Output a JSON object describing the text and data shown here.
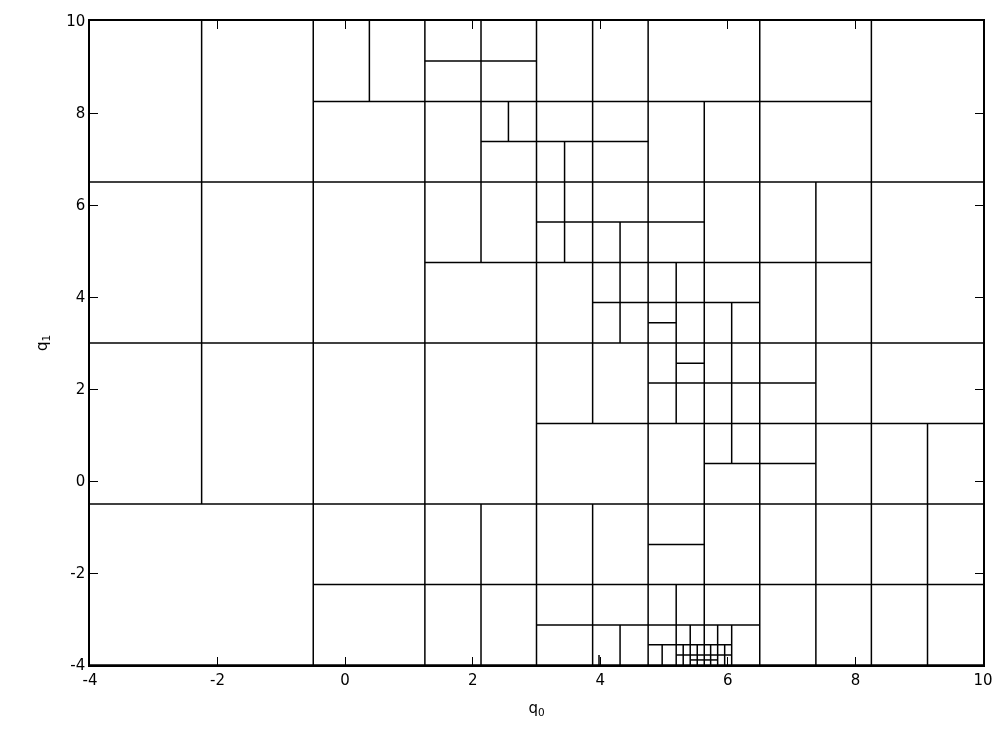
{
  "chart_data": {
    "type": "line",
    "xlabel": "q$_{0}$",
    "ylabel": "q$_{1}$",
    "xlim": [
      -4,
      10
    ],
    "ylim": [
      -4,
      10
    ],
    "xticks": [
      -4,
      -2,
      0,
      2,
      4,
      6,
      8,
      10
    ],
    "yticks": [
      -4,
      -2,
      0,
      2,
      4,
      6,
      8,
      10
    ],
    "marker": "none",
    "line_style": "solid",
    "series": [
      {
        "color": "#000000",
        "x": [
          -2.25,
          -2.25
        ],
        "values": [
          -0.5,
          10
        ]
      },
      {
        "color": "#000000",
        "x": [
          -0.5,
          -0.5
        ],
        "values": [
          -4,
          10
        ]
      },
      {
        "color": "#000000",
        "x": [
          0.38,
          0.38
        ],
        "values": [
          8.25,
          10
        ]
      },
      {
        "color": "#000000",
        "x": [
          1.25,
          1.25
        ],
        "values": [
          -4,
          10
        ]
      },
      {
        "color": "#000000",
        "x": [
          2.13,
          2.13
        ],
        "values": [
          4.75,
          10
        ]
      },
      {
        "color": "#000000",
        "x": [
          2.13,
          2.13
        ],
        "values": [
          -4,
          -0.5
        ]
      },
      {
        "color": "#000000",
        "x": [
          2.56,
          2.56
        ],
        "values": [
          7.38,
          8.25
        ]
      },
      {
        "color": "#000000",
        "x": [
          3,
          3
        ],
        "values": [
          -4,
          10
        ]
      },
      {
        "color": "#000000",
        "x": [
          3.44,
          3.44
        ],
        "values": [
          4.75,
          7.38
        ]
      },
      {
        "color": "#000000",
        "x": [
          3.88,
          3.88
        ],
        "values": [
          1.25,
          10
        ]
      },
      {
        "color": "#000000",
        "x": [
          3.88,
          3.88
        ],
        "values": [
          -4,
          -0.5
        ]
      },
      {
        "color": "#000000",
        "x": [
          3.98,
          3.98
        ],
        "values": [
          -4,
          -3.78
        ]
      },
      {
        "color": "#000000",
        "x": [
          4.31,
          4.31
        ],
        "values": [
          3,
          5.63
        ]
      },
      {
        "color": "#000000",
        "x": [
          4.31,
          4.31
        ],
        "values": [
          -4,
          -3.13
        ]
      },
      {
        "color": "#000000",
        "x": [
          4.75,
          4.75
        ],
        "values": [
          -4,
          10
        ]
      },
      {
        "color": "#000000",
        "x": [
          4.97,
          4.97
        ],
        "values": [
          -4,
          -3.56
        ]
      },
      {
        "color": "#000000",
        "x": [
          5.19,
          5.19
        ],
        "values": [
          1.25,
          4.75
        ]
      },
      {
        "color": "#000000",
        "x": [
          5.19,
          5.19
        ],
        "values": [
          -4,
          -2.25
        ]
      },
      {
        "color": "#000000",
        "x": [
          5.3,
          5.3
        ],
        "values": [
          -4,
          -3.56
        ]
      },
      {
        "color": "#000000",
        "x": [
          5.41,
          5.41
        ],
        "values": [
          -4,
          -3.13
        ]
      },
      {
        "color": "#000000",
        "x": [
          5.52,
          5.52
        ],
        "values": [
          -4,
          -3.56
        ]
      },
      {
        "color": "#000000",
        "x": [
          5.63,
          5.63
        ],
        "values": [
          -4,
          8.25
        ]
      },
      {
        "color": "#000000",
        "x": [
          5.73,
          5.73
        ],
        "values": [
          -4,
          -3.56
        ]
      },
      {
        "color": "#000000",
        "x": [
          5.84,
          5.84
        ],
        "values": [
          -4,
          -3.13
        ]
      },
      {
        "color": "#000000",
        "x": [
          5.95,
          5.95
        ],
        "values": [
          -4,
          -3.56
        ]
      },
      {
        "color": "#000000",
        "x": [
          6.06,
          6.06
        ],
        "values": [
          0.38,
          3.88
        ]
      },
      {
        "color": "#000000",
        "x": [
          6.06,
          6.06
        ],
        "values": [
          -4,
          -3.13
        ]
      },
      {
        "color": "#000000",
        "x": [
          6.5,
          6.5
        ],
        "values": [
          -4,
          10
        ]
      },
      {
        "color": "#000000",
        "x": [
          7.38,
          7.38
        ],
        "values": [
          -4,
          6.5
        ]
      },
      {
        "color": "#000000",
        "x": [
          8.25,
          8.25
        ],
        "values": [
          -4,
          10
        ]
      },
      {
        "color": "#000000",
        "x": [
          9.13,
          9.13
        ],
        "values": [
          -4,
          1.25
        ]
      },
      {
        "color": "#000000",
        "x": [
          1.25,
          3
        ],
        "values": [
          9.13,
          9.13
        ]
      },
      {
        "color": "#000000",
        "x": [
          -0.5,
          8.25
        ],
        "values": [
          8.25,
          8.25
        ]
      },
      {
        "color": "#000000",
        "x": [
          2.13,
          4.75
        ],
        "values": [
          7.38,
          7.38
        ]
      },
      {
        "color": "#000000",
        "x": [
          -4,
          10
        ],
        "values": [
          6.5,
          6.5
        ]
      },
      {
        "color": "#000000",
        "x": [
          3,
          5.63
        ],
        "values": [
          5.63,
          5.63
        ]
      },
      {
        "color": "#000000",
        "x": [
          1.25,
          8.25
        ],
        "values": [
          4.75,
          4.75
        ]
      },
      {
        "color": "#000000",
        "x": [
          3.88,
          6.5
        ],
        "values": [
          3.88,
          3.88
        ]
      },
      {
        "color": "#000000",
        "x": [
          4.75,
          5.19
        ],
        "values": [
          3.44,
          3.44
        ]
      },
      {
        "color": "#000000",
        "x": [
          -4,
          10
        ],
        "values": [
          3,
          3
        ]
      },
      {
        "color": "#000000",
        "x": [
          5.19,
          5.63
        ],
        "values": [
          2.56,
          2.56
        ]
      },
      {
        "color": "#000000",
        "x": [
          4.75,
          7.38
        ],
        "values": [
          2.13,
          2.13
        ]
      },
      {
        "color": "#000000",
        "x": [
          3,
          10
        ],
        "values": [
          1.25,
          1.25
        ]
      },
      {
        "color": "#000000",
        "x": [
          5.63,
          7.38
        ],
        "values": [
          0.38,
          0.38
        ]
      },
      {
        "color": "#000000",
        "x": [
          -4,
          10
        ],
        "values": [
          -0.5,
          -0.5
        ]
      },
      {
        "color": "#000000",
        "x": [
          4.75,
          5.63
        ],
        "values": [
          -1.38,
          -1.38
        ]
      },
      {
        "color": "#000000",
        "x": [
          -0.5,
          10
        ],
        "values": [
          -2.25,
          -2.25
        ]
      },
      {
        "color": "#000000",
        "x": [
          3,
          6.5
        ],
        "values": [
          -3.13,
          -3.13
        ]
      },
      {
        "color": "#000000",
        "x": [
          4.75,
          6.06
        ],
        "values": [
          -3.56,
          -3.56
        ]
      },
      {
        "color": "#000000",
        "x": [
          5.19,
          6.06
        ],
        "values": [
          -3.78,
          -3.78
        ]
      },
      {
        "color": "#000000",
        "x": [
          5.41,
          5.84
        ],
        "values": [
          -3.89,
          -3.89
        ]
      },
      {
        "color": "#000000",
        "x": [
          -4,
          10
        ],
        "values": [
          -4,
          -4
        ]
      }
    ]
  }
}
